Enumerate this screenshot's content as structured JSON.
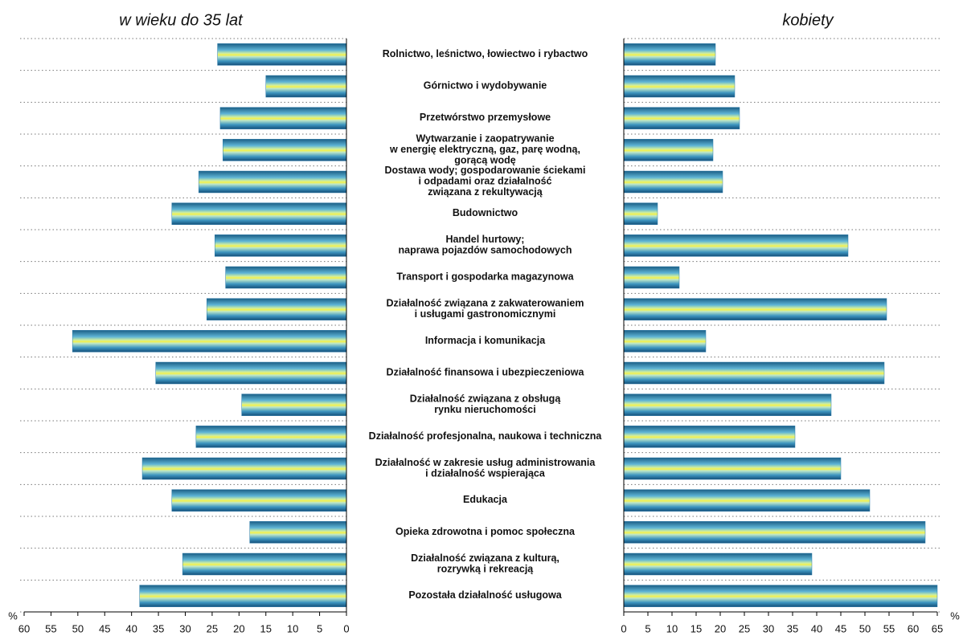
{
  "chart_data": {
    "type": "butterfly",
    "categories": [
      "Rolnictwo, leśnictwo, łowiectwo i rybactwo",
      "Górnictwo i wydobywanie",
      "Przetwórstwo przemysłowe",
      "Wytwarzanie i zaopatrywanie\nw energię elektryczną, gaz, parę wodną,\ngorącą wodę",
      "Dostawa wody; gospodarowanie ściekami\ni odpadami oraz działalność\nzwiązana z rekultywacją",
      "Budownictwo",
      "Handel hurtowy;\nnaprawa pojazdów samochodowych",
      "Transport i gospodarka magazynowa",
      "Działalność związana z zakwaterowaniem\ni usługami gastronomicznymi",
      "Informacja i komunikacja",
      "Działalność finansowa i ubezpieczeniowa",
      "Działalność związana z obsługą\nrynku nieruchomości",
      "Działalność profesjonalna, naukowa i techniczna",
      "Działalność w zakresie usług administrowania\ni działalność wspierająca",
      "Edukacja",
      "Opieka zdrowotna i pomoc społeczna",
      "Działalność związana z kulturą,\nrozrywką i rekreacją",
      "Pozostała działalność usługowa"
    ],
    "axis_unit": "%",
    "grid": true,
    "series": [
      {
        "name": "w wieku do 35 lat",
        "side": "left",
        "color": "#2a7aa8",
        "values": [
          24,
          15,
          23.5,
          23,
          27.5,
          32.5,
          24.5,
          22.5,
          26,
          51,
          35.5,
          19.5,
          28,
          38,
          32.5,
          18,
          30.5,
          38.5
        ],
        "xlim": [
          0,
          60
        ],
        "xticks": [
          0,
          5,
          10,
          15,
          20,
          25,
          30,
          35,
          40,
          45,
          50,
          55,
          60
        ]
      },
      {
        "name": "kobiety",
        "side": "right",
        "color": "#2a7aa8",
        "values": [
          19,
          23,
          24,
          18.5,
          20.5,
          7,
          46.5,
          11.5,
          54.5,
          17,
          54,
          43,
          35.5,
          45,
          51,
          62.5,
          39,
          65
        ],
        "xlim": [
          0,
          65
        ],
        "xticks": [
          0,
          5,
          10,
          15,
          20,
          25,
          30,
          35,
          40,
          45,
          50,
          55,
          60,
          65
        ]
      }
    ]
  }
}
